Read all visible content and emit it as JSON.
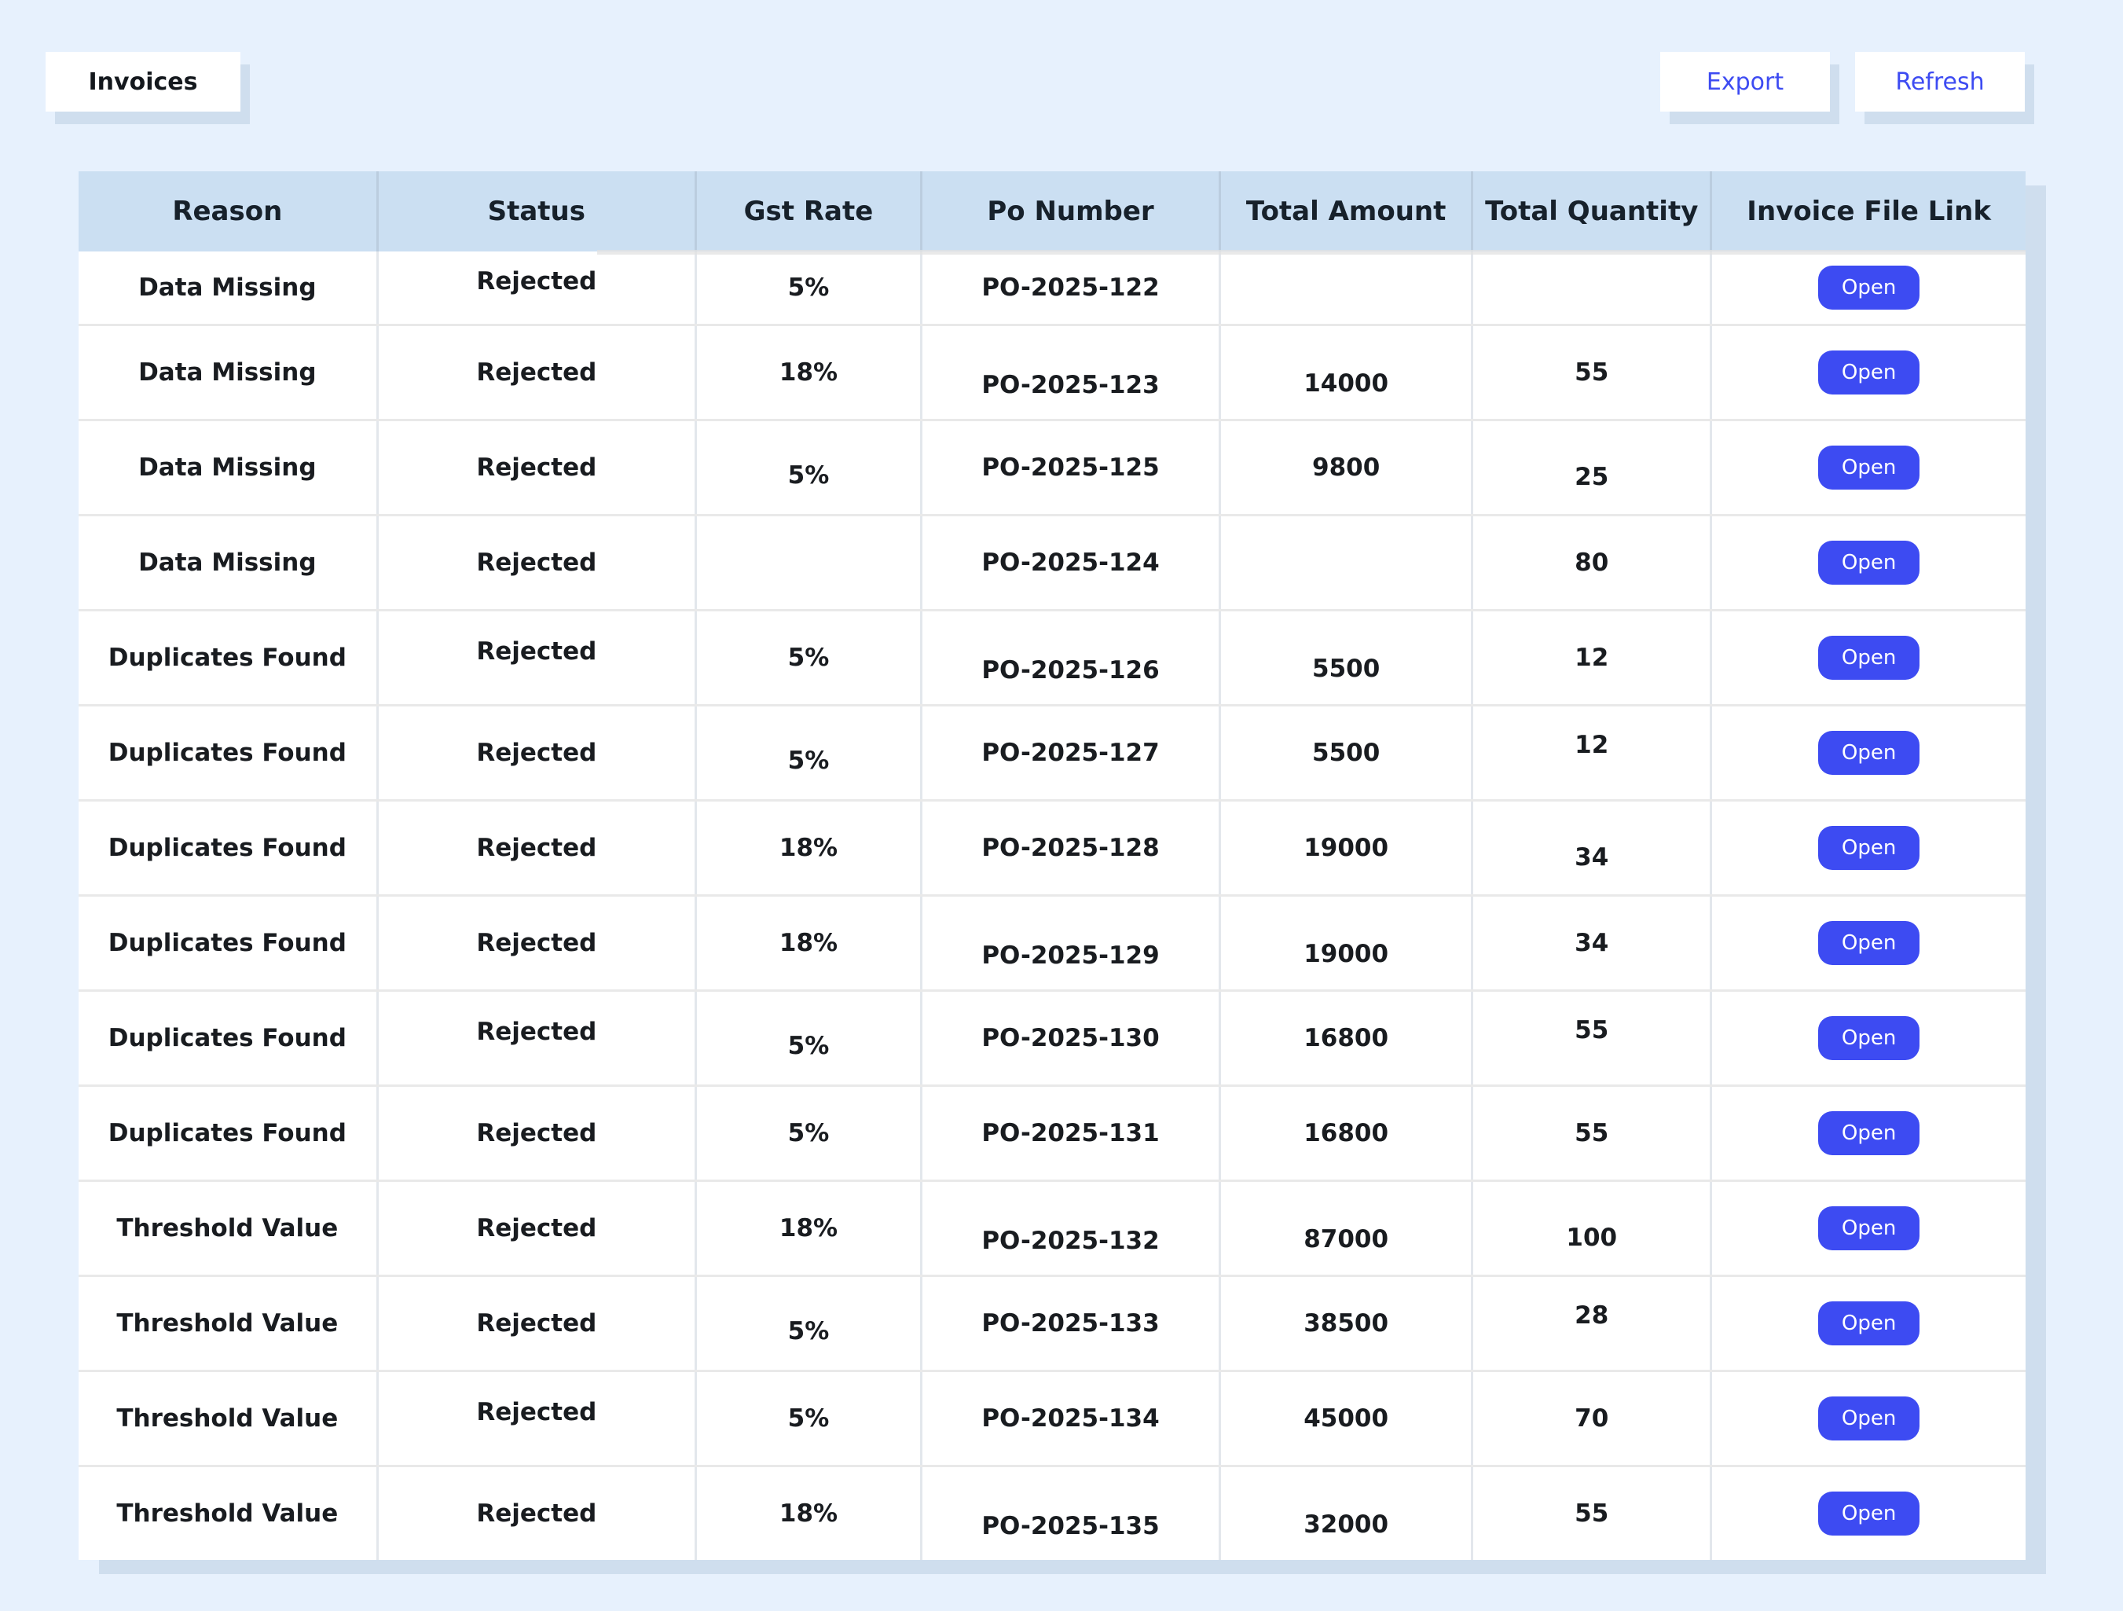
{
  "toolbar": {
    "title": "Invoices",
    "export_label": "Export",
    "refresh_label": "Refresh"
  },
  "colors": {
    "page_background": "#e7f1fd",
    "card_shadow": "#cfdeee",
    "table_header_background": "#cbdff2",
    "accent_blue": "#3d4bf2",
    "body_text": "#191c20"
  },
  "table": {
    "headers": [
      "Reason",
      "Status",
      "Gst Rate",
      "Po Number",
      "Total Amount",
      "Total Quantity",
      "Invoice File Link"
    ],
    "keys": [
      "reason",
      "status",
      "gst_rate",
      "po_number",
      "total_amount",
      "total_quantity",
      "link"
    ],
    "rows": [
      {
        "reason": "Data Missing",
        "status": "Rejected",
        "gst_rate": "5%",
        "po_number": "PO-2025-122",
        "total_amount": "",
        "total_quantity": "",
        "link": "Open"
      },
      {
        "reason": "Data Missing",
        "status": "Rejected",
        "gst_rate": "18%",
        "po_number": "PO-2025-123",
        "total_amount": "14000",
        "total_quantity": "55",
        "link": "Open"
      },
      {
        "reason": "Data Missing",
        "status": "Rejected",
        "gst_rate": "5%",
        "po_number": "PO-2025-125",
        "total_amount": "9800",
        "total_quantity": "25",
        "link": "Open"
      },
      {
        "reason": "Data Missing",
        "status": "Rejected",
        "gst_rate": "",
        "po_number": "PO-2025-124",
        "total_amount": "",
        "total_quantity": "80",
        "link": "Open"
      },
      {
        "reason": "Duplicates Found",
        "status": "Rejected",
        "gst_rate": "5%",
        "po_number": "PO-2025-126",
        "total_amount": "5500",
        "total_quantity": "12",
        "link": "Open"
      },
      {
        "reason": "Duplicates Found",
        "status": "Rejected",
        "gst_rate": "5%",
        "po_number": "PO-2025-127",
        "total_amount": "5500",
        "total_quantity": "12",
        "link": "Open"
      },
      {
        "reason": "Duplicates Found",
        "status": "Rejected",
        "gst_rate": "18%",
        "po_number": "PO-2025-128",
        "total_amount": "19000",
        "total_quantity": "34",
        "link": "Open"
      },
      {
        "reason": "Duplicates Found",
        "status": "Rejected",
        "gst_rate": "18%",
        "po_number": "PO-2025-129",
        "total_amount": "19000",
        "total_quantity": "34",
        "link": "Open"
      },
      {
        "reason": "Duplicates Found",
        "status": "Rejected",
        "gst_rate": "5%",
        "po_number": "PO-2025-130",
        "total_amount": "16800",
        "total_quantity": "55",
        "link": "Open"
      },
      {
        "reason": "Duplicates Found",
        "status": "Rejected",
        "gst_rate": "5%",
        "po_number": "PO-2025-131",
        "total_amount": "16800",
        "total_quantity": "55",
        "link": "Open"
      },
      {
        "reason": "Threshold Value",
        "status": "Rejected",
        "gst_rate": "18%",
        "po_number": "PO-2025-132",
        "total_amount": "87000",
        "total_quantity": "100",
        "link": "Open"
      },
      {
        "reason": "Threshold Value",
        "status": "Rejected",
        "gst_rate": "5%",
        "po_number": "PO-2025-133",
        "total_amount": "38500",
        "total_quantity": "28",
        "link": "Open"
      },
      {
        "reason": "Threshold Value",
        "status": "Rejected",
        "gst_rate": "5%",
        "po_number": "PO-2025-134",
        "total_amount": "45000",
        "total_quantity": "70",
        "link": "Open"
      },
      {
        "reason": "Threshold Value",
        "status": "Rejected",
        "gst_rate": "18%",
        "po_number": "PO-2025-135",
        "total_amount": "32000",
        "total_quantity": "55",
        "link": "Open"
      }
    ]
  }
}
